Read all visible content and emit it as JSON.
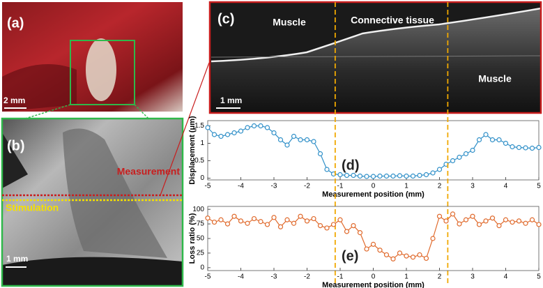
{
  "panels": {
    "a": {
      "label": "(a)",
      "scale_bar": "2 mm"
    },
    "b": {
      "label": "(b)",
      "measurement": "Measurement",
      "stimulation": "Stimulation",
      "scale_bar": "1 mm"
    },
    "c": {
      "label": "(c)",
      "regions": [
        "Muscle",
        "Connective tissue",
        "Muscle"
      ],
      "scale_bar": "1 mm"
    }
  },
  "chart_data": [
    {
      "type": "line",
      "panel_label": "(d)",
      "xlabel": "Measurement position (mm)",
      "ylabel": "Displacement (μm)",
      "color": "#2f8fc8",
      "x": [
        -5,
        -4.8,
        -4.6,
        -4.4,
        -4.2,
        -4,
        -3.8,
        -3.6,
        -3.4,
        -3.2,
        -3,
        -2.8,
        -2.6,
        -2.4,
        -2.2,
        -2,
        -1.8,
        -1.6,
        -1.4,
        -1.2,
        -1,
        -0.8,
        -0.6,
        -0.4,
        -0.2,
        0,
        0.2,
        0.4,
        0.6,
        0.8,
        1,
        1.2,
        1.4,
        1.6,
        1.8,
        2,
        2.2,
        2.4,
        2.6,
        2.8,
        3,
        3.2,
        3.4,
        3.6,
        3.8,
        4,
        4.2,
        4.4,
        4.6,
        4.8,
        5
      ],
      "values": [
        1.45,
        1.25,
        1.2,
        1.25,
        1.3,
        1.35,
        1.45,
        1.5,
        1.5,
        1.45,
        1.3,
        1.1,
        0.95,
        1.2,
        1.1,
        1.1,
        1.05,
        0.7,
        0.25,
        0.12,
        0.1,
        0.08,
        0.08,
        0.06,
        0.05,
        0.05,
        0.06,
        0.06,
        0.06,
        0.07,
        0.06,
        0.06,
        0.08,
        0.1,
        0.15,
        0.25,
        0.4,
        0.5,
        0.6,
        0.7,
        0.8,
        1.1,
        1.25,
        1.1,
        1.1,
        1.0,
        0.9,
        0.88,
        0.87,
        0.86,
        0.88
      ],
      "xlim": [
        -5,
        5
      ],
      "xticks": [
        -5,
        -4,
        -3,
        -2,
        -1,
        0,
        1,
        2,
        3,
        4,
        5
      ],
      "ylim": [
        -0.05,
        1.65
      ],
      "yticks": [
        0,
        0.5,
        1,
        1.5
      ],
      "vlines": [
        -1.15,
        2.25
      ],
      "vline_color": "#f0a800"
    },
    {
      "type": "line",
      "panel_label": "(e)",
      "xlabel": "Measurement position (mm)",
      "ylabel": "Loss ratio (%)",
      "color": "#e06a2c",
      "x": [
        -5,
        -4.8,
        -4.6,
        -4.4,
        -4.2,
        -4,
        -3.8,
        -3.6,
        -3.4,
        -3.2,
        -3,
        -2.8,
        -2.6,
        -2.4,
        -2.2,
        -2,
        -1.8,
        -1.6,
        -1.4,
        -1.2,
        -1,
        -0.8,
        -0.6,
        -0.4,
        -0.2,
        0,
        0.2,
        0.4,
        0.6,
        0.8,
        1,
        1.2,
        1.4,
        1.6,
        1.8,
        2,
        2.2,
        2.4,
        2.6,
        2.8,
        3,
        3.2,
        3.4,
        3.6,
        3.8,
        4,
        4.2,
        4.4,
        4.6,
        4.8,
        5
      ],
      "values": [
        85,
        78,
        82,
        75,
        88,
        80,
        76,
        84,
        79,
        74,
        86,
        70,
        82,
        76,
        88,
        80,
        84,
        72,
        68,
        74,
        82,
        62,
        72,
        60,
        32,
        40,
        30,
        22,
        15,
        25,
        20,
        18,
        22,
        16,
        50,
        88,
        80,
        92,
        75,
        82,
        88,
        74,
        80,
        85,
        72,
        82,
        78,
        80,
        76,
        82,
        74
      ],
      "xlim": [
        -5,
        5
      ],
      "xticks": [
        -5,
        -4,
        -3,
        -2,
        -1,
        0,
        1,
        2,
        3,
        4,
        5
      ],
      "ylim": [
        -5,
        105
      ],
      "yticks": [
        0,
        25,
        50,
        75,
        100
      ]
    }
  ]
}
